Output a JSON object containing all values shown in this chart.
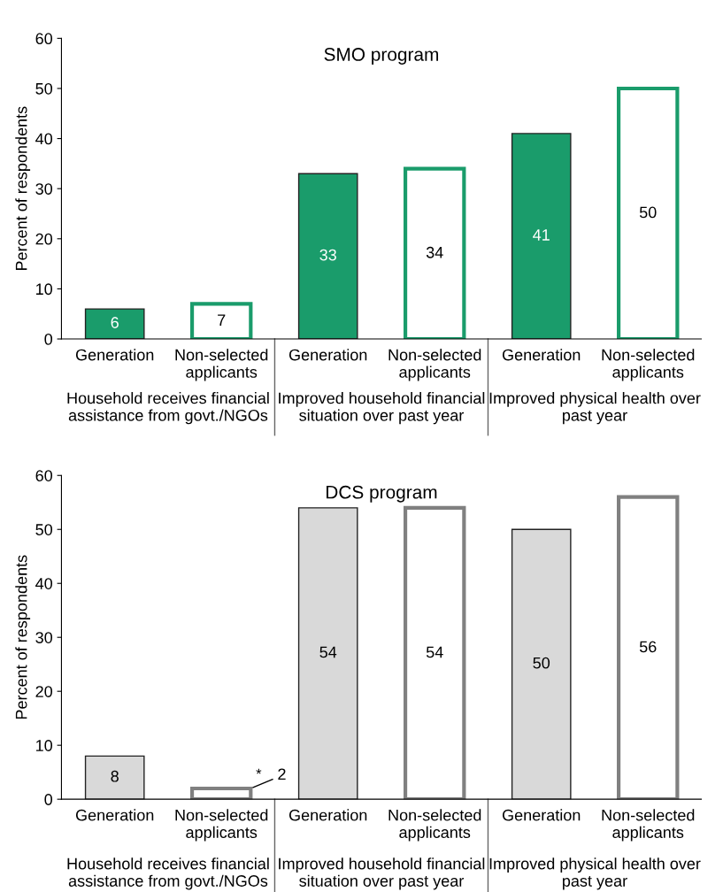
{
  "chart_data": [
    {
      "type": "bar",
      "title": "SMO program",
      "ylabel": "Percent of respondents",
      "categories": [
        "Generation",
        "Non-selected\napplicants",
        "Generation",
        "Non-selected\napplicants",
        "Generation",
        "Non-selected\napplicants"
      ],
      "series": [
        {
          "color": "#1a9c6b",
          "values": [
            6,
            null,
            33,
            null,
            41,
            null
          ]
        },
        {
          "color": "#1a9c6b",
          "values": [
            null,
            7,
            null,
            34,
            null,
            50
          ]
        }
      ],
      "data_labels": true,
      "ylim": [
        0,
        60
      ],
      "yticks": [
        0,
        10,
        20,
        30,
        40,
        50,
        60
      ],
      "grid": false,
      "legend": false,
      "annotations": [
        "Household receives financial\nassistance from govt./NGOs",
        "Improved household financial\nsituation over past year",
        "Improved physical health over\npast year"
      ]
    },
    {
      "type": "bar",
      "title": "DCS program",
      "ylabel": "Percent of respondents",
      "categories": [
        "Generation",
        "Non-selected\napplicants",
        "Generation",
        "Non-selected\napplicants",
        "Generation",
        "Non-selected\napplicants"
      ],
      "series": [
        {
          "color": "#d9d9d9",
          "values": [
            8,
            null,
            54,
            null,
            50,
            null
          ]
        },
        {
          "color": "#808080",
          "values": [
            null,
            2,
            null,
            54,
            null,
            56
          ]
        }
      ],
      "data_labels": true,
      "ylim": [
        0,
        60
      ],
      "yticks": [
        0,
        10,
        20,
        30,
        40,
        50,
        60
      ],
      "grid": false,
      "legend": false,
      "annotations": [
        "Household receives financial\nassistance from govt./NGOs",
        "Improved household financial\nsituation over past year",
        "Improved physical health over\npast year",
        {
          "text": "*",
          "x": "Non-selected\napplicants",
          "y": 2
        }
      ]
    }
  ]
}
